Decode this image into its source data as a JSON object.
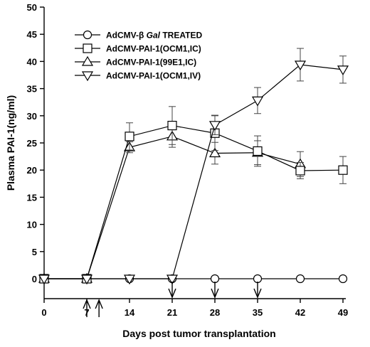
{
  "chart_data": {
    "type": "line",
    "title": "",
    "xlabel": "Days post tumor transplantation",
    "ylabel": "Plasma PAI-1(ng/ml)",
    "xlim": [
      0,
      49
    ],
    "ylim": [
      0,
      50
    ],
    "xticks": [
      0,
      7,
      14,
      21,
      28,
      35,
      42,
      49
    ],
    "yticks": [
      0,
      5,
      10,
      15,
      20,
      25,
      30,
      35,
      40,
      45,
      50
    ],
    "grid": false,
    "legend_position": "top-left",
    "series": [
      {
        "name": "AdCMV-β Gal TREATED",
        "legend_prefix": "AdCMV-β ",
        "legend_italic": "Gal",
        "legend_suffix": " TREATED",
        "marker": "circle",
        "x": [
          0,
          7,
          14,
          21,
          28,
          35,
          42,
          49
        ],
        "y": [
          0,
          0,
          0,
          0,
          0,
          0,
          0,
          0
        ],
        "err": [
          0,
          0,
          0,
          0,
          0,
          0,
          0,
          0
        ]
      },
      {
        "name": "AdCMV-PAI-1(OCM1,IC)",
        "marker": "square",
        "x": [
          0,
          7,
          14,
          21,
          28,
          35,
          42,
          49
        ],
        "y": [
          0,
          0,
          26.2,
          28.2,
          26.8,
          23.5,
          19.9,
          20.0
        ],
        "err": [
          0,
          0,
          2.5,
          3.5,
          3.2,
          2.8,
          1.5,
          2.5
        ]
      },
      {
        "name": "AdCMV-PAI-1(99E1,IC)",
        "marker": "triangle-up",
        "x": [
          0,
          7,
          14,
          21,
          28,
          35,
          42,
          49
        ],
        "y": [
          0,
          0,
          24.2,
          26.2,
          23.1,
          23.2,
          21.1,
          null
        ],
        "err": [
          0,
          0,
          1.0,
          2.0,
          2.0,
          2.2,
          2.3,
          0
        ]
      },
      {
        "name": "AdCMV-PAI-1(OCM1,IV)",
        "marker": "triangle-down",
        "x": [
          0,
          7,
          14,
          21,
          28,
          35,
          42,
          49
        ],
        "y": [
          0,
          0,
          0,
          0,
          28.3,
          32.8,
          39.4,
          38.5
        ],
        "err": [
          0,
          0,
          0,
          0,
          1.8,
          2.4,
          3.0,
          2.5
        ]
      }
    ],
    "annotations": {
      "up_arrow_days": [
        7,
        9
      ],
      "down_arrow_days": [
        21,
        28,
        35
      ]
    }
  }
}
